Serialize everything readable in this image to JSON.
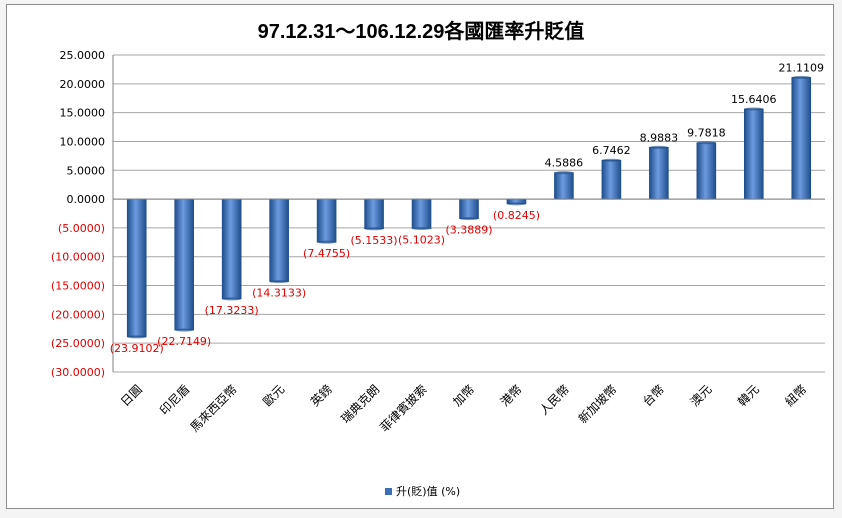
{
  "chart_data": {
    "type": "bar",
    "title": "97.12.31～106.12.29各國匯率升貶值",
    "categories": [
      "日圓",
      "印尼盾",
      "馬來西亞幣",
      "歐元",
      "英鎊",
      "瑞典克朗",
      "菲律賓披索",
      "加幣",
      "港幣",
      "人民幣",
      "新加坡幣",
      "台幣",
      "澳元",
      "韓元",
      "紐幣"
    ],
    "series": [
      {
        "name": "升(貶)值 (%)",
        "values": [
          -23.9102,
          -22.7149,
          -17.3233,
          -14.3133,
          -7.4755,
          -5.1533,
          -5.1023,
          -3.3889,
          -0.8245,
          4.5886,
          6.7462,
          8.9883,
          9.7818,
          15.6406,
          21.1109
        ]
      }
    ],
    "value_labels": [
      "(23.9102)",
      "(22.7149)",
      "(17.3233)",
      "(14.3133)",
      "(7.4755)",
      "(5.1533)",
      "(5.1023)",
      "(3.3889)",
      "(0.8245)",
      "4.5886",
      "6.7462",
      "8.9883",
      "9.7818",
      "15.6406",
      "21.1109"
    ],
    "y_ticks": [
      25,
      20,
      15,
      10,
      5,
      0,
      -5,
      -10,
      -15,
      -20,
      -25,
      -30
    ],
    "y_tick_labels": [
      "25.0000",
      "20.0000",
      "15.0000",
      "10.0000",
      "5.0000",
      "0.0000",
      "(5.0000)",
      "(10.0000)",
      "(15.0000)",
      "(20.0000)",
      "(25.0000)",
      "(30.0000)"
    ],
    "ylim": [
      -30,
      25
    ],
    "grid": true,
    "legend_position": "bottom",
    "colors": {
      "bar": "#3a6fb5",
      "bar_dark": "#1f4e8c",
      "bar_light": "#6d9be0",
      "negative_text": "#e00000",
      "positive_text": "#000000",
      "grid": "#a6a6a6"
    }
  }
}
